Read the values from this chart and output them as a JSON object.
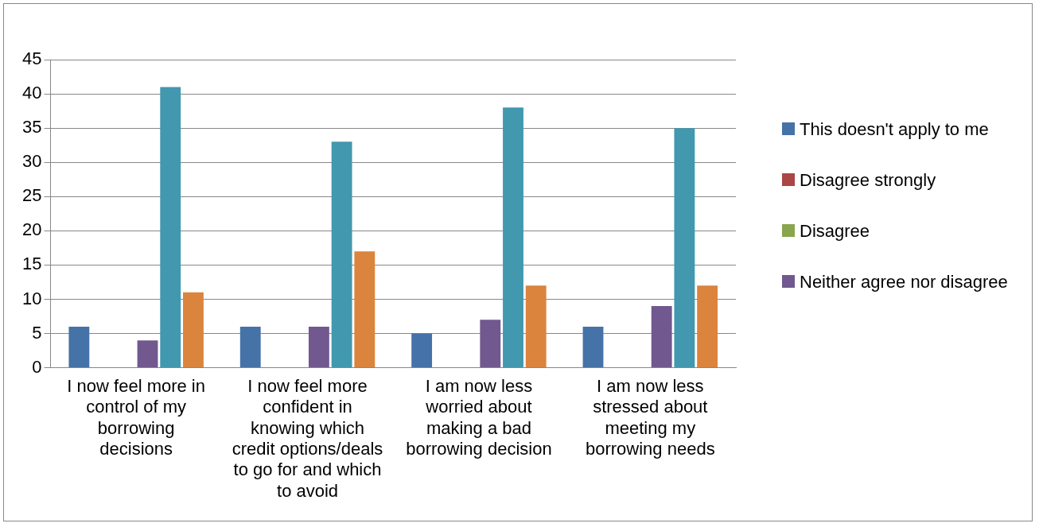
{
  "chart_data": {
    "type": "bar",
    "categories": [
      "I now feel more in control of my borrowing decisions",
      "I now feel more confident in knowing which credit options/deals to go for and which to avoid",
      "I am now less worried about making a bad borrowing decision",
      "I am now less stressed about meeting my borrowing needs"
    ],
    "series": [
      {
        "name": "This doesn't apply to me",
        "color": "#4572a7",
        "values": [
          6,
          6,
          5,
          6
        ]
      },
      {
        "name": "Disagree strongly",
        "color": "#aa4643",
        "values": [
          0,
          0,
          0,
          0
        ]
      },
      {
        "name": "Disagree",
        "color": "#89a54e",
        "values": [
          0,
          0,
          0,
          0
        ]
      },
      {
        "name": "Neither agree nor disagree",
        "color": "#71588f",
        "values": [
          4,
          6,
          7,
          9
        ]
      },
      {
        "color": "#4198af",
        "values": [
          41,
          33,
          38,
          35
        ]
      },
      {
        "color": "#db843d",
        "values": [
          11,
          17,
          12,
          12
        ]
      }
    ],
    "ylim": [
      0,
      45
    ],
    "yticks": [
      0,
      5,
      10,
      15,
      20,
      25,
      30,
      35,
      40,
      45
    ],
    "grid": "y",
    "legend": "right"
  }
}
